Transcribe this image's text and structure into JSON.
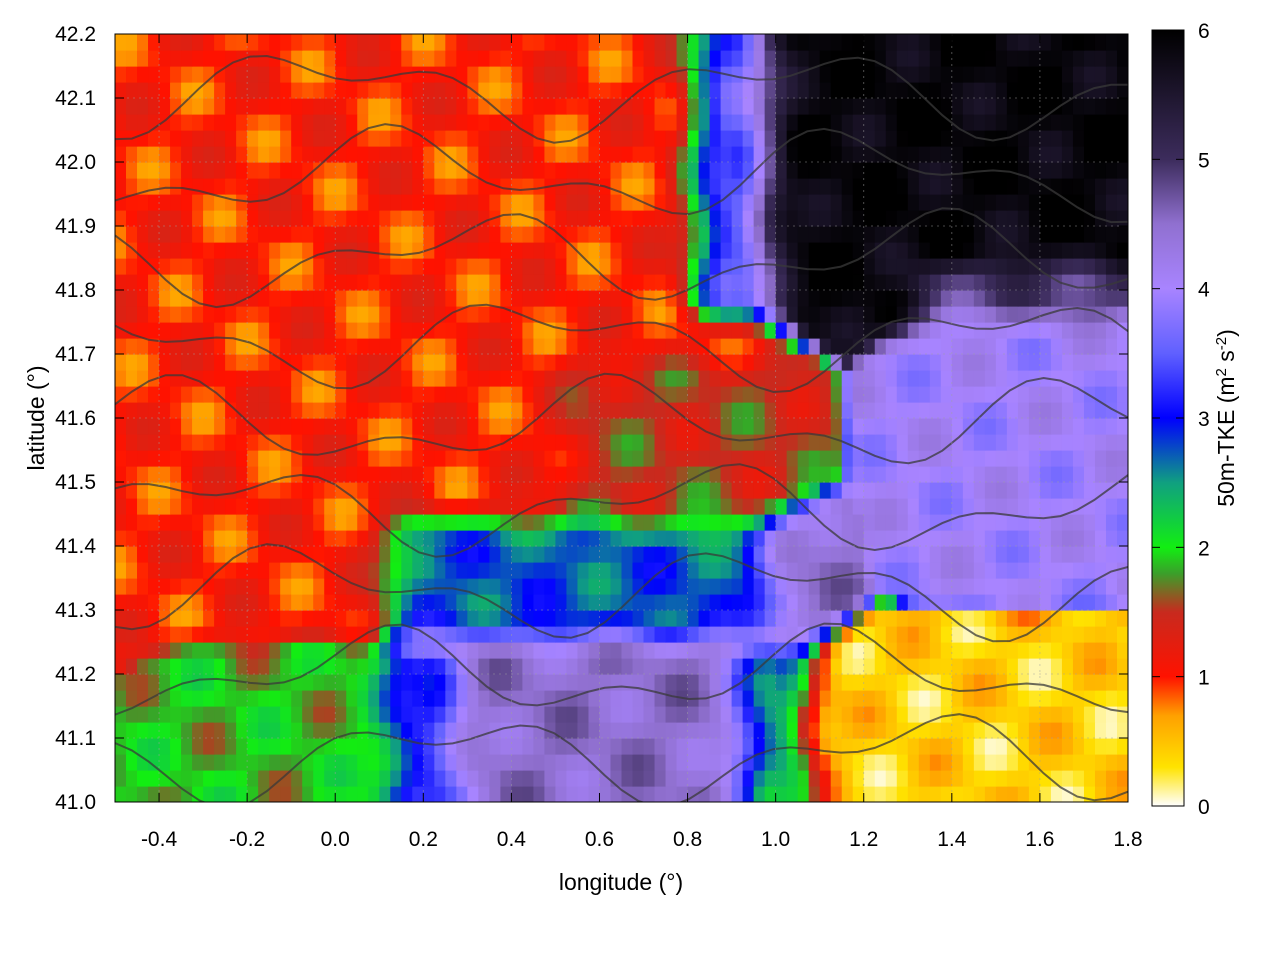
{
  "chart_data": {
    "type": "heatmap",
    "xlabel": "longitude (°)",
    "ylabel": "latitude (°)",
    "xlim": [
      -0.5,
      1.8
    ],
    "ylim": [
      41.0,
      42.2
    ],
    "x_ticks": [
      -0.4,
      -0.2,
      0.0,
      0.2,
      0.4,
      0.6,
      0.8,
      1.0,
      1.2,
      1.4,
      1.6,
      1.8
    ],
    "x_tick_labels": [
      "-0.4",
      "-0.2",
      "0.0",
      "0.2",
      "0.4",
      "0.6",
      "0.8",
      "1.0",
      "1.2",
      "1.4",
      "1.6",
      "1.8"
    ],
    "y_ticks": [
      41.0,
      41.1,
      41.2,
      41.3,
      41.4,
      41.5,
      41.6,
      41.7,
      41.8,
      41.9,
      42.0,
      42.1,
      42.2
    ],
    "y_tick_labels": [
      "41.0",
      "41.1",
      "41.2",
      "41.3",
      "41.4",
      "41.5",
      "41.6",
      "41.7",
      "41.8",
      "41.9",
      "42.0",
      "42.1",
      "42.2"
    ],
    "grid": true,
    "colorbar": {
      "label_main": "50m-TKE (m",
      "label_sup1": "2",
      "label_mid": " s",
      "label_sup2": "-2",
      "label_end": ")",
      "range": [
        0,
        6
      ],
      "ticks": [
        0,
        1,
        2,
        3,
        4,
        5,
        6
      ],
      "tick_labels": [
        "0",
        "1",
        "2",
        "3",
        "4",
        "5",
        "6"
      ],
      "palette": [
        [
          0,
          "#ffffff"
        ],
        [
          0.3,
          "#ffe300"
        ],
        [
          0.7,
          "#ffa000"
        ],
        [
          1.0,
          "#ff1200"
        ],
        [
          1.5,
          "#c82a1e"
        ],
        [
          1.8,
          "#3aa02a"
        ],
        [
          2.0,
          "#12ee12"
        ],
        [
          2.5,
          "#10a080"
        ],
        [
          3.0,
          "#0000ff"
        ],
        [
          3.5,
          "#6060ff"
        ],
        [
          4.0,
          "#a884ff"
        ],
        [
          4.5,
          "#9070d0"
        ],
        [
          5.0,
          "#3c2c5c"
        ],
        [
          6.0,
          "#000000"
        ]
      ]
    },
    "field_regions": [
      {
        "lon": [
          -0.5,
          0.9
        ],
        "lat": [
          41.3,
          42.2
        ],
        "tke": 1.0
      },
      {
        "lon": [
          0.9,
          1.8
        ],
        "lat": [
          41.8,
          42.2
        ],
        "tke": 5.9
      },
      {
        "lon": [
          0.2,
          1.0
        ],
        "lat": [
          41.0,
          41.4
        ],
        "tke": 4.5
      },
      {
        "lon": [
          1.0,
          1.8
        ],
        "lat": [
          41.0,
          41.2
        ],
        "tke": 0.4
      },
      {
        "lon": [
          0.6,
          0.9
        ],
        "lat": [
          41.45,
          41.65
        ],
        "tke": 2.0
      },
      {
        "lon": [
          -0.3,
          0.2
        ],
        "lat": [
          41.0,
          41.2
        ],
        "tke": 1.9
      },
      {
        "lon": [
          1.4,
          1.8
        ],
        "lat": [
          41.4,
          41.8
        ],
        "tke": 4.0
      }
    ]
  }
}
